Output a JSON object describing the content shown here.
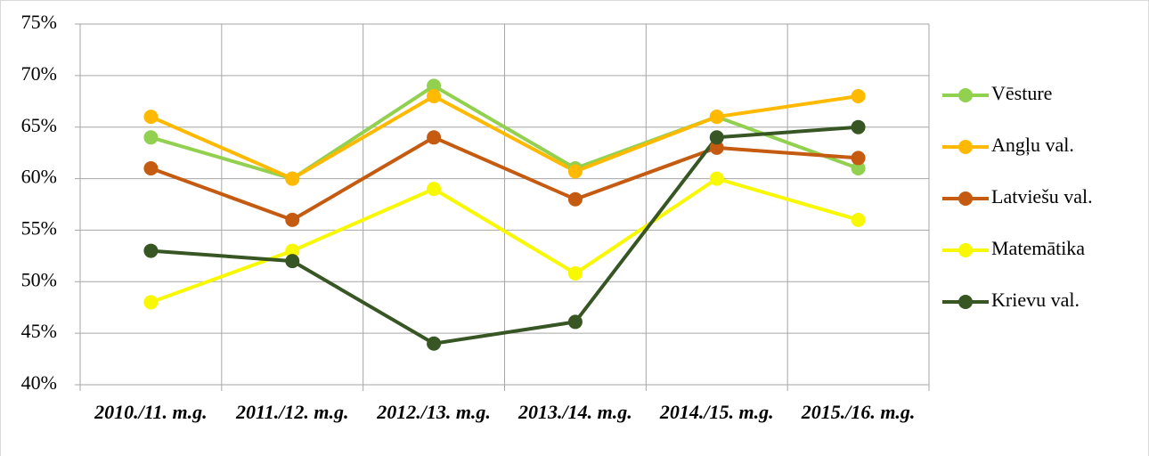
{
  "chart_data": {
    "type": "line",
    "categories": [
      "2010./11. m.g.",
      "2011./12. m.g.",
      "2012./13. m.g.",
      "2013./14. m.g.",
      "2014./15. m.g.",
      "2015./16. m.g."
    ],
    "series": [
      {
        "name": "Vēsture",
        "color": "#92d050",
        "values": [
          64,
          60,
          69,
          61,
          66,
          61
        ]
      },
      {
        "name": "Angļu val.",
        "color": "#ffb900",
        "values": [
          66,
          60,
          68,
          60.7,
          66,
          68
        ]
      },
      {
        "name": "Latviešu val.",
        "color": "#c55a11",
        "values": [
          61,
          56,
          64,
          58,
          63,
          62
        ]
      },
      {
        "name": "Matemātika",
        "color": "#f8f800",
        "values": [
          48,
          53,
          59,
          50.8,
          60,
          56
        ]
      },
      {
        "name": "Krievu val.",
        "color": "#375623",
        "values": [
          53,
          52,
          44,
          46.1,
          64,
          65
        ]
      }
    ],
    "ylim": [
      40,
      75
    ],
    "yticks": [
      {
        "value": 40,
        "label": "40%"
      },
      {
        "value": 45,
        "label": "45%"
      },
      {
        "value": 50,
        "label": "50%"
      },
      {
        "value": 55,
        "label": "55%"
      },
      {
        "value": 60,
        "label": "60%"
      },
      {
        "value": 65,
        "label": "65%"
      },
      {
        "value": 70,
        "label": "70%"
      },
      {
        "value": 75,
        "label": "75%"
      }
    ],
    "grid": true,
    "legend": "right"
  }
}
